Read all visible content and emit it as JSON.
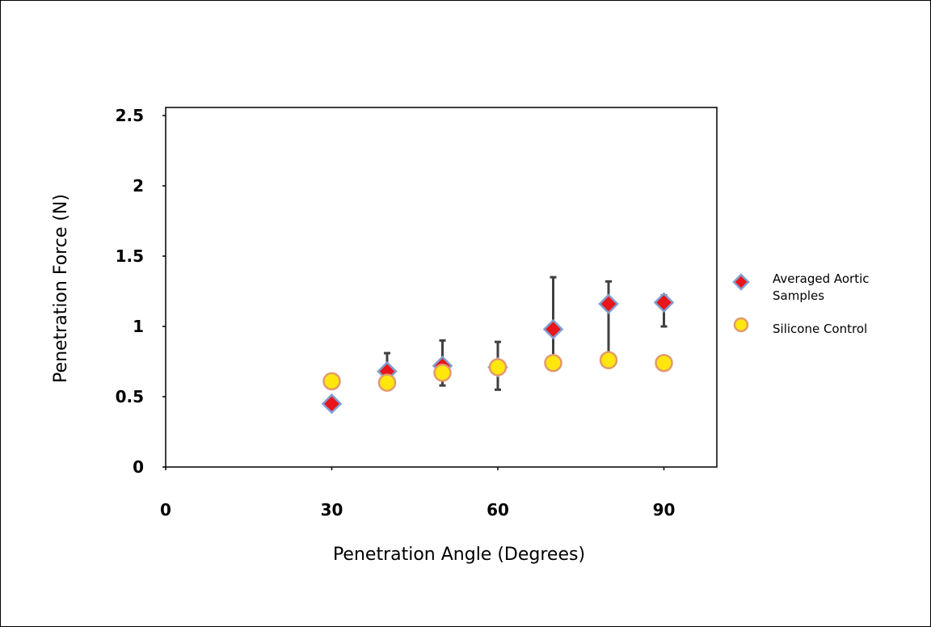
{
  "chart_data": {
    "type": "scatter",
    "xlabel": "Penetration Angle (Degrees)",
    "ylabel": "Penetration Force (N)",
    "xlim": [
      0,
      100
    ],
    "ylim": [
      0,
      2.5
    ],
    "xticks": [
      0,
      30,
      60,
      90
    ],
    "yticks": [
      0,
      0.5,
      1,
      1.5,
      2,
      2.5
    ],
    "x_tick_labels": [
      "0",
      "30",
      "60",
      "90"
    ],
    "y_tick_labels": [
      "0",
      "0.5",
      "1",
      "1.5",
      "2",
      "2.5"
    ],
    "grid": false,
    "legend_position": "right",
    "series": [
      {
        "name_lines": [
          "Averaged Aortic",
          "Samples"
        ],
        "marker": "diamond",
        "color": "#e8151b",
        "edge_color": "#7f9fd0",
        "x": [
          30,
          40,
          50,
          60,
          70,
          80,
          90
        ],
        "y": [
          0.45,
          0.68,
          0.72,
          0.71,
          0.98,
          1.16,
          1.17
        ],
        "error_upper": [
          0.45,
          0.81,
          0.9,
          0.89,
          1.35,
          1.32,
          1.22
        ],
        "error_lower": [
          0.45,
          0.6,
          0.58,
          0.55,
          0.73,
          0.76,
          1.0
        ]
      },
      {
        "name_lines": [
          "Silicone Control"
        ],
        "marker": "circle",
        "color": "#ffe70e",
        "edge_color": "#e39a6b",
        "x": [
          30,
          40,
          50,
          60,
          70,
          80,
          90
        ],
        "y": [
          0.61,
          0.6,
          0.67,
          0.71,
          0.74,
          0.76,
          0.74
        ]
      }
    ]
  }
}
